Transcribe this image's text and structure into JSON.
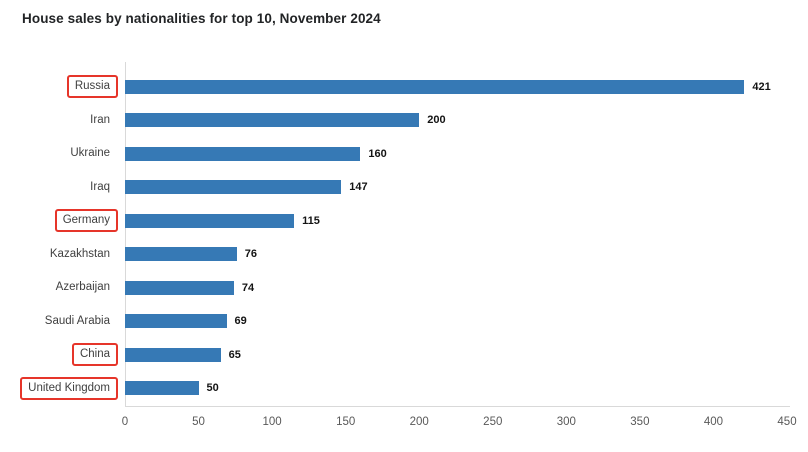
{
  "title": "House sales by nationalities for top 10, November 2024",
  "chart_data": {
    "type": "bar",
    "orientation": "horizontal",
    "title": "House sales by nationalities for top 10, November 2024",
    "categories": [
      "Russia",
      "Iran",
      "Ukraine",
      "Iraq",
      "Germany",
      "Kazakhstan",
      "Azerbaijan",
      "Saudi Arabia",
      "China",
      "United Kingdom"
    ],
    "values": [
      421,
      200,
      160,
      147,
      115,
      76,
      74,
      69,
      65,
      50
    ],
    "highlighted_categories": [
      "Russia",
      "Germany",
      "China",
      "United Kingdom"
    ],
    "xlabel": "",
    "ylabel": "",
    "xlim": [
      0,
      450
    ],
    "x_ticks": [
      0,
      50,
      100,
      150,
      200,
      250,
      300,
      350,
      400,
      450
    ],
    "grid": false,
    "value_labels": true,
    "legend": false,
    "bar_color": "#3679b5",
    "highlight_box_color": "#e6352a",
    "axis_line_color": "#d9d9d9",
    "tick_label_color": "#595959",
    "category_label_color": "#3f3f3f",
    "value_label_color": "#141414",
    "title_color": "#222426",
    "background_color": "#ffffff"
  }
}
